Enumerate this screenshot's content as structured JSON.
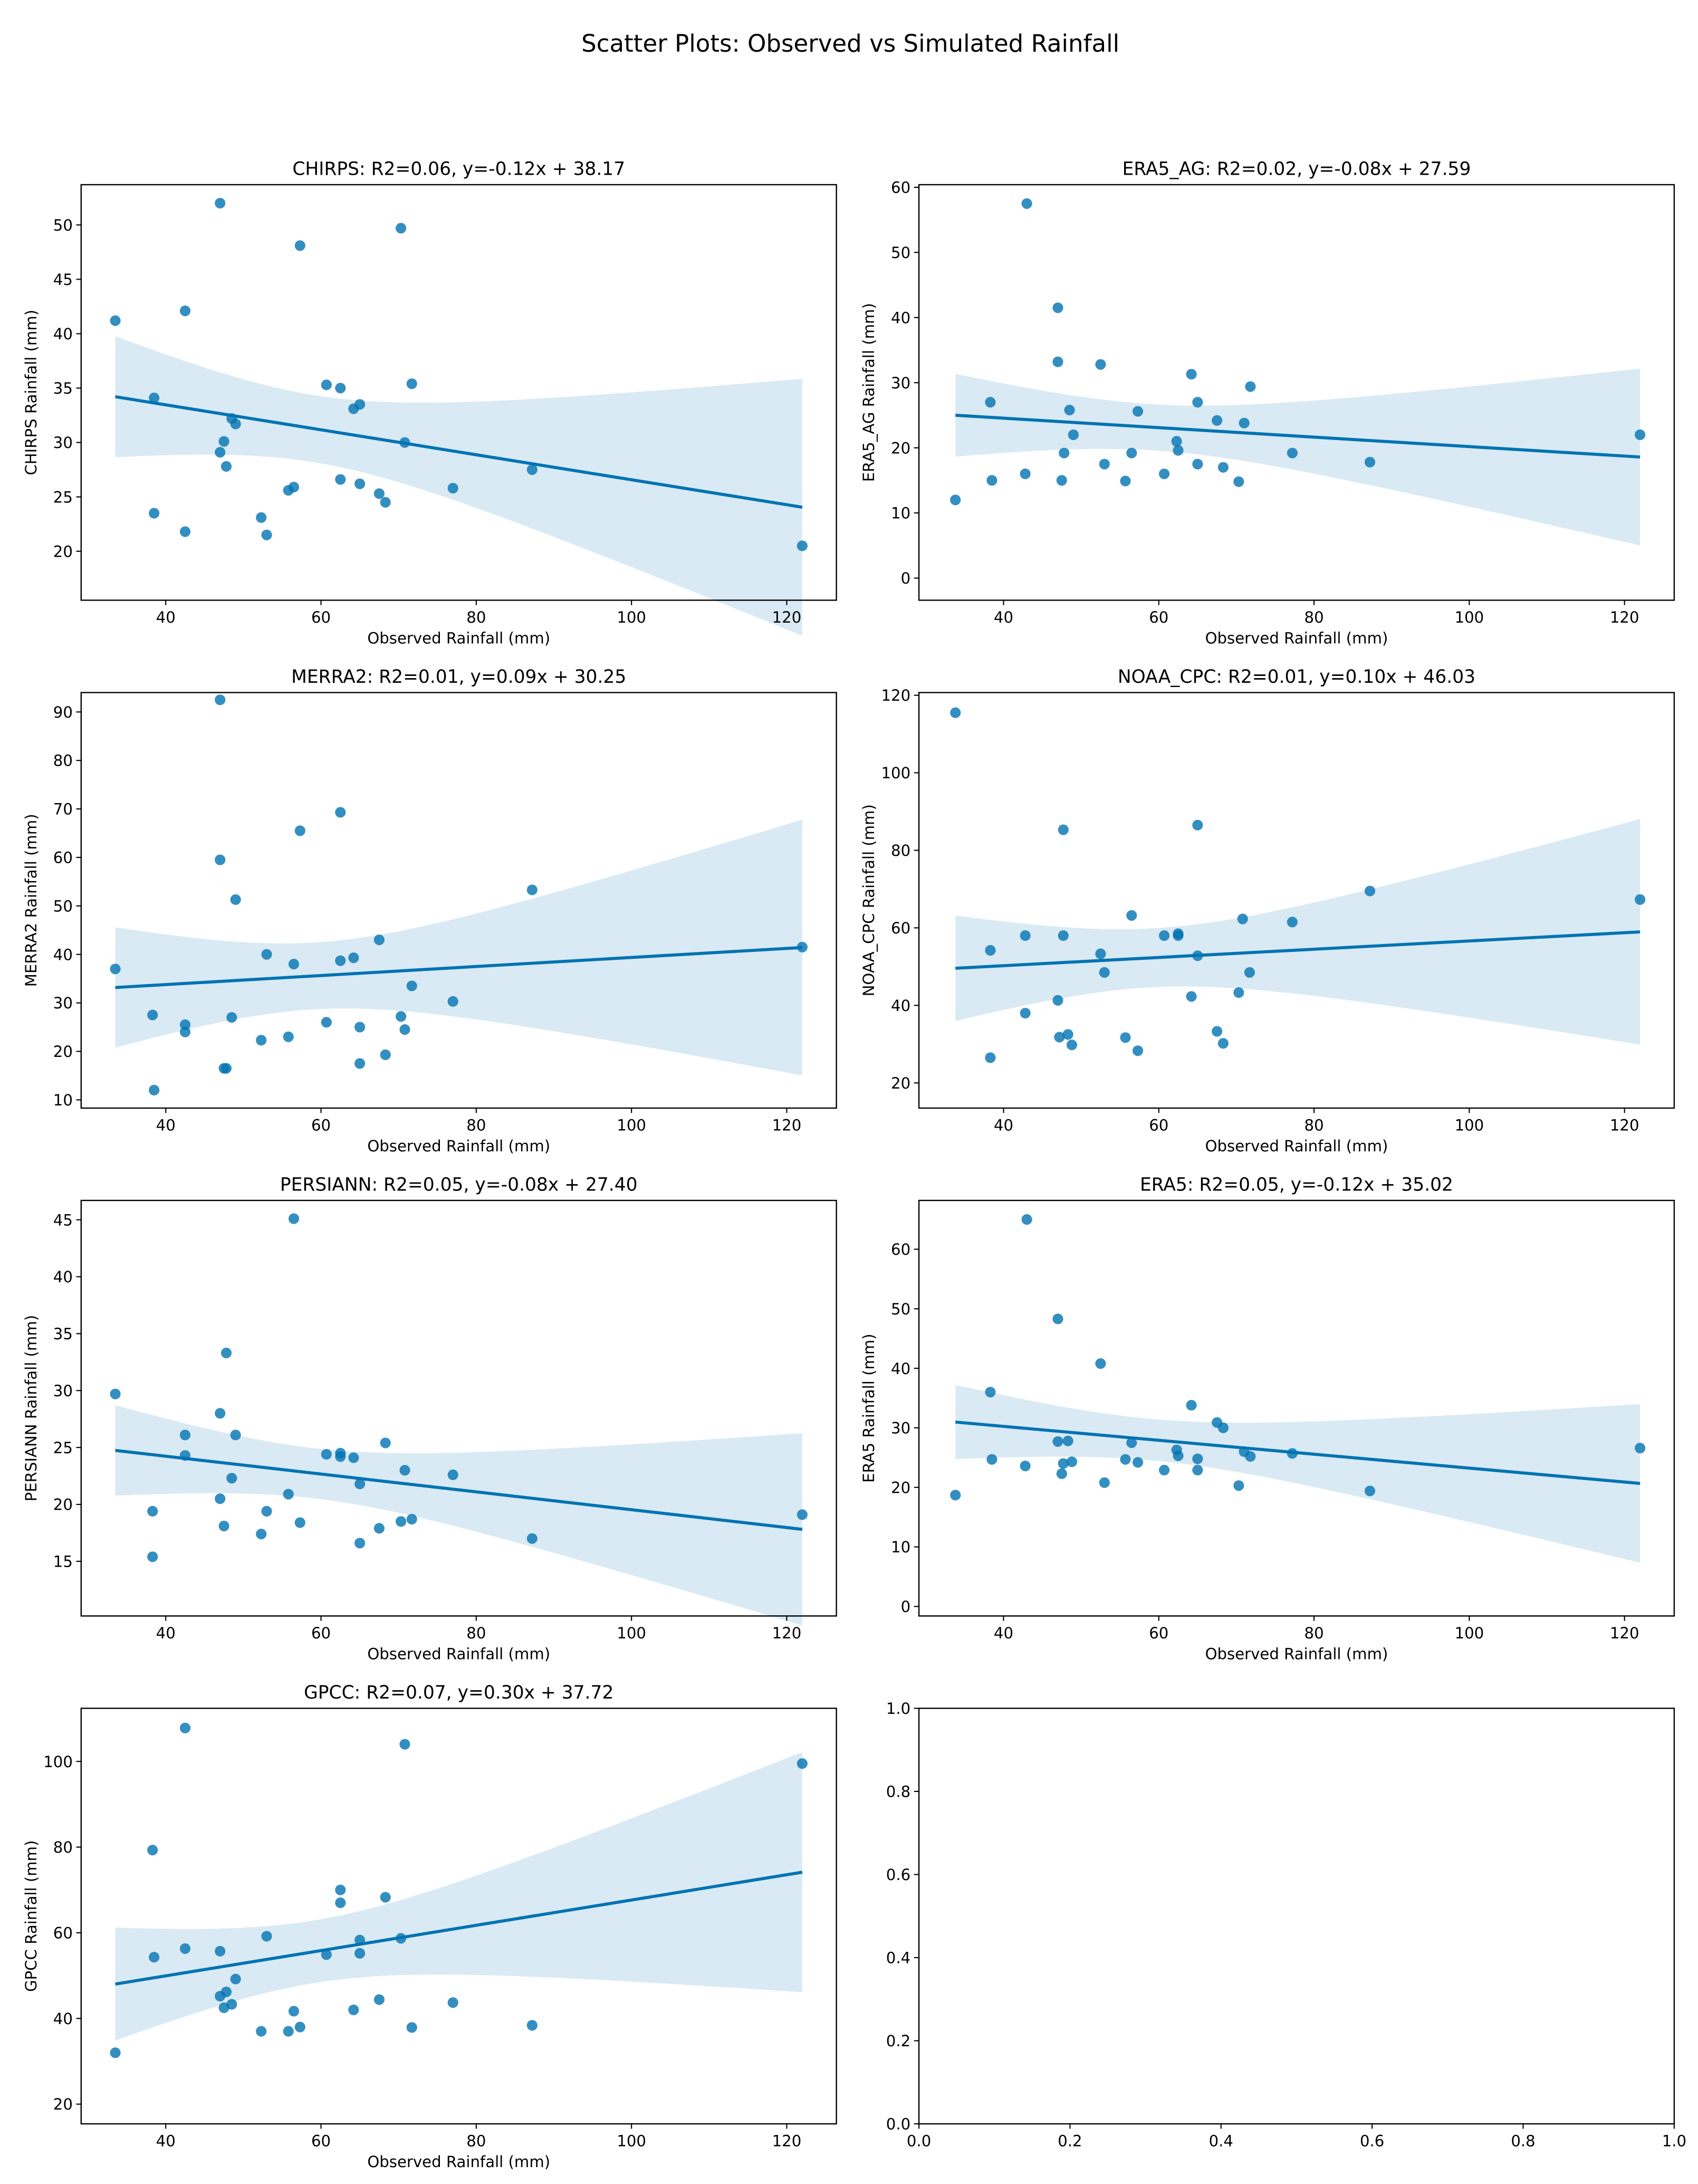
{
  "title": "Scatter Plots: Observed vs Simulated Rainfall",
  "chart_data": [
    {
      "type": "scatter",
      "title": "CHIRPS: R2=0.06, y=-0.12x + 38.17",
      "xlabel": "Observed Rainfall (mm)",
      "ylabel": "CHIRPS Rainfall (mm)",
      "color": "#0173b2",
      "x": [
        33.5,
        38.5,
        38.5,
        42.5,
        42.5,
        47,
        47,
        47.5,
        47.8,
        48.5,
        49,
        52.3,
        53,
        55.8,
        56.5,
        57.3,
        60.7,
        62.5,
        62.5,
        64.2,
        65,
        65,
        67.5,
        68.3,
        70.3,
        70.8,
        71.7,
        77,
        87.2,
        122
      ],
      "values": [
        41.2,
        34.1,
        23.5,
        42.1,
        21.8,
        52,
        29.1,
        30.1,
        27.8,
        32.2,
        31.7,
        23.1,
        21.5,
        25.6,
        25.9,
        48.1,
        35.3,
        26.6,
        35,
        33.1,
        33.5,
        26.2,
        25.3,
        24.5,
        49.7,
        30,
        35.4,
        25.8,
        27.5,
        20.5
      ],
      "xlim": [
        29.1,
        126.4
      ],
      "ylim": [
        15.5,
        53.7
      ],
      "xticks": [
        40,
        60,
        80,
        100,
        120
      ],
      "yticks": [
        20,
        25,
        30,
        35,
        40,
        45,
        50
      ]
    },
    {
      "type": "scatter",
      "title": "ERA5_AG: R2=0.02, y=-0.08x + 27.59",
      "xlabel": "Observed Rainfall (mm)",
      "ylabel": "ERA5_AG Rainfall (mm)",
      "color": "#0173b2",
      "x": [
        33.8,
        38.3,
        38.5,
        42.8,
        43,
        47,
        47,
        47.5,
        47.8,
        48.5,
        49,
        52.5,
        53,
        55.7,
        56.5,
        57.3,
        60.7,
        62.3,
        62.5,
        64.2,
        65,
        65,
        67.5,
        68.3,
        70.3,
        71,
        71.8,
        77.2,
        87.2,
        122
      ],
      "values": [
        12,
        27,
        15,
        16,
        57.5,
        41.5,
        33.2,
        15,
        19.2,
        25.8,
        22,
        32.8,
        17.5,
        14.9,
        19.2,
        25.6,
        16,
        21,
        19.6,
        31.3,
        27,
        17.5,
        24.2,
        17,
        14.8,
        23.8,
        29.4,
        19.2,
        17.8,
        22
      ],
      "xlim": [
        29.1,
        126.4
      ],
      "ylim": [
        -3.4,
        60.4
      ],
      "xticks": [
        40,
        60,
        80,
        100,
        120
      ],
      "yticks": [
        0,
        10,
        20,
        30,
        40,
        50,
        60
      ]
    },
    {
      "type": "scatter",
      "title": "MERRA2: R2=0.01, y=0.09x + 30.25",
      "xlabel": "Observed Rainfall (mm)",
      "ylabel": "MERRA2 Rainfall (mm)",
      "color": "#0173b2",
      "x": [
        33.5,
        38.3,
        38.5,
        42.5,
        42.5,
        47,
        47,
        47.5,
        47.8,
        48.5,
        49,
        52.3,
        53,
        55.8,
        56.5,
        57.3,
        60.7,
        62.5,
        62.5,
        64.2,
        65,
        65,
        67.5,
        68.3,
        70.3,
        70.8,
        71.7,
        77,
        87.2,
        122
      ],
      "values": [
        37,
        27.5,
        12,
        25.5,
        24,
        92.5,
        59.5,
        16.5,
        16.5,
        27,
        51.3,
        22.3,
        40,
        23,
        38,
        65.5,
        26,
        69.3,
        38.7,
        39.3,
        25,
        17.5,
        43,
        19.3,
        27.2,
        24.5,
        33.5,
        30.3,
        53.3,
        41.5
      ],
      "xlim": [
        29.1,
        126.4
      ],
      "ylim": [
        8.3,
        94
      ],
      "xticks": [
        40,
        60,
        80,
        100,
        120
      ],
      "yticks": [
        10,
        20,
        30,
        40,
        50,
        60,
        70,
        80,
        90
      ]
    },
    {
      "type": "scatter",
      "title": "NOAA_CPC: R2=0.01, y=0.10x + 46.03",
      "xlabel": "Observed Rainfall (mm)",
      "ylabel": "NOAA_CPC Rainfall (mm)",
      "color": "#0173b2",
      "x": [
        33.8,
        38.3,
        38.3,
        42.8,
        42.8,
        47,
        47.2,
        47.7,
        47.7,
        48.3,
        48.8,
        52.5,
        53,
        55.7,
        56.5,
        57.3,
        60.7,
        62.5,
        62.5,
        64.2,
        65,
        65,
        67.5,
        68.3,
        70.3,
        70.8,
        71.7,
        77.2,
        87.2,
        122
      ],
      "values": [
        115.5,
        54.2,
        26.5,
        58,
        38,
        41.3,
        31.8,
        85.3,
        58,
        32.5,
        29.8,
        53.3,
        48.5,
        31.7,
        63.2,
        28.3,
        58,
        58.5,
        58,
        42.3,
        86.5,
        52.8,
        33.3,
        30.2,
        43.3,
        62.3,
        48.5,
        61.5,
        69.5,
        67.3
      ],
      "xlim": [
        29.1,
        126.4
      ],
      "ylim": [
        13.5,
        120.7
      ],
      "xticks": [
        40,
        60,
        80,
        100,
        120
      ],
      "yticks": [
        20,
        40,
        60,
        80,
        100,
        120
      ]
    },
    {
      "type": "scatter",
      "title": "PERSIANN: R2=0.05, y=-0.08x + 27.40",
      "xlabel": "Observed Rainfall (mm)",
      "ylabel": "PERSIANN Rainfall (mm)",
      "color": "#0173b2",
      "x": [
        33.5,
        38.3,
        38.3,
        42.5,
        42.5,
        47,
        47,
        47.5,
        47.8,
        48.5,
        49,
        52.3,
        53,
        55.8,
        56.5,
        57.3,
        60.7,
        62.5,
        62.5,
        64.2,
        65,
        65,
        67.5,
        68.3,
        70.3,
        70.8,
        71.7,
        77,
        87.2,
        122
      ],
      "values": [
        29.7,
        19.4,
        15.4,
        26.1,
        24.3,
        28,
        20.5,
        18.1,
        33.3,
        22.3,
        26.1,
        17.4,
        19.4,
        20.9,
        45.1,
        18.4,
        24.4,
        24.5,
        24.2,
        24.1,
        21.8,
        16.6,
        17.9,
        25.4,
        18.5,
        23,
        18.7,
        22.6,
        17,
        19.1
      ],
      "xlim": [
        29.1,
        126.4
      ],
      "ylim": [
        10.2,
        46.7
      ],
      "xticks": [
        40,
        60,
        80,
        100,
        120
      ],
      "yticks": [
        15,
        20,
        25,
        30,
        35,
        40,
        45
      ]
    },
    {
      "type": "scatter",
      "title": "ERA5: R2=0.05, y=-0.12x + 35.02",
      "xlabel": "Observed Rainfall (mm)",
      "ylabel": "ERA5 Rainfall (mm)",
      "color": "#0173b2",
      "x": [
        33.8,
        38.3,
        38.5,
        42.8,
        43,
        47,
        47,
        47.5,
        47.7,
        48.3,
        48.8,
        52.5,
        53,
        55.7,
        56.5,
        57.3,
        60.7,
        62.3,
        62.5,
        64.2,
        65,
        65,
        67.5,
        68.3,
        70.3,
        71,
        71.8,
        77.2,
        87.2,
        122
      ],
      "values": [
        18.7,
        36,
        24.7,
        23.6,
        65,
        48.3,
        27.7,
        22.3,
        24,
        27.8,
        24.3,
        40.8,
        20.8,
        24.7,
        27.5,
        24.2,
        22.9,
        26.3,
        25.3,
        33.8,
        24.8,
        22.9,
        30.9,
        30,
        20.3,
        26,
        25.2,
        25.7,
        19.4,
        26.6
      ],
      "xlim": [
        29.1,
        126.4
      ],
      "ylim": [
        -1.6,
        68.2
      ],
      "xticks": [
        40,
        60,
        80,
        100,
        120
      ],
      "yticks": [
        0,
        10,
        20,
        30,
        40,
        50,
        60
      ]
    },
    {
      "type": "scatter",
      "title": "GPCC: R2=0.07, y=0.30x + 37.72",
      "xlabel": "Observed Rainfall (mm)",
      "ylabel": "GPCC Rainfall (mm)",
      "color": "#0173b2",
      "x": [
        33.5,
        38.3,
        38.5,
        42.5,
        42.5,
        47,
        47,
        47.5,
        47.8,
        48.5,
        49,
        52.3,
        53,
        55.8,
        56.5,
        57.3,
        60.7,
        62.5,
        62.5,
        64.2,
        65,
        65,
        67.5,
        68.3,
        70.3,
        70.8,
        71.7,
        77,
        87.2,
        122
      ],
      "values": [
        32,
        79.3,
        54.3,
        107.8,
        56.3,
        55.7,
        45.2,
        42.5,
        46.2,
        43.3,
        49.2,
        37,
        59.2,
        37,
        41.7,
        38,
        54.9,
        70,
        67,
        42,
        58.3,
        55.2,
        44.4,
        68.3,
        58.7,
        104,
        37.9,
        43.7,
        38.4,
        99.5
      ],
      "xlim": [
        29.1,
        126.4
      ],
      "ylim": [
        15.4,
        112.4
      ],
      "xticks": [
        40,
        60,
        80,
        100,
        120
      ],
      "yticks": [
        20,
        40,
        60,
        80,
        100
      ]
    },
    {
      "type": "empty",
      "xlim": [
        0,
        1
      ],
      "ylim": [
        0,
        1
      ],
      "xticks": [
        {
          "value": 0,
          "label": "0.0"
        },
        0.2,
        0.4,
        0.6,
        0.8,
        {
          "value": 1,
          "label": "1.0"
        }
      ],
      "yticks": [
        {
          "value": 0,
          "label": "0.0"
        },
        0.2,
        0.4,
        0.6,
        0.8,
        {
          "value": 1,
          "label": "1.0"
        }
      ]
    }
  ]
}
